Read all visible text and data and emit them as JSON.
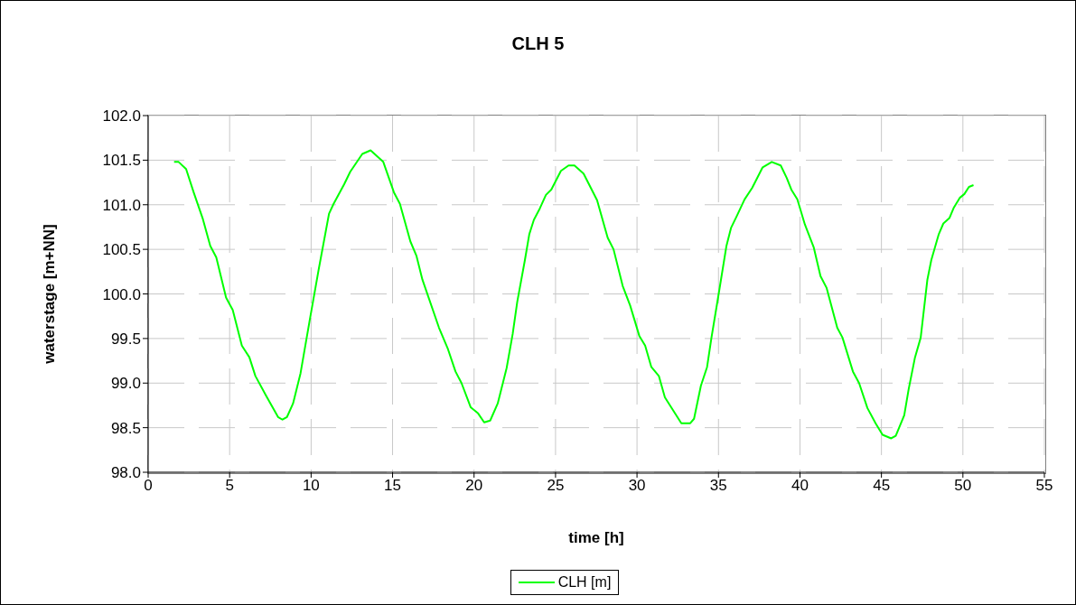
{
  "chart_data": {
    "type": "line",
    "title": "CLH 5",
    "xlabel": "time [h]",
    "ylabel": "waterstage [m+NN]",
    "xlim": [
      0,
      55
    ],
    "xticks": [
      0,
      5,
      10,
      15,
      20,
      25,
      30,
      35,
      40,
      45,
      50,
      55
    ],
    "ylim": [
      98.0,
      102.0
    ],
    "yticks": [
      {
        "value": 98.0,
        "label": "98.0"
      },
      {
        "value": 98.5,
        "label": "98.5"
      },
      {
        "value": 99.0,
        "label": "99.0"
      },
      {
        "value": 99.5,
        "label": "99.5"
      },
      {
        "value": 100.0,
        "label": "100.0"
      },
      {
        "value": 100.5,
        "label": "100.5"
      },
      {
        "value": 101.0,
        "label": "101.0"
      },
      {
        "value": 101.5,
        "label": "101.5"
      },
      {
        "value": 102.0,
        "label": "102.0"
      }
    ],
    "grid": true,
    "legend": "bottom",
    "marker": "none",
    "line_style": "solid",
    "series": [
      {
        "name": "CLH [m]",
        "color": "#00ff00",
        "x": [
          1.59,
          1.87,
          2.33,
          2.79,
          3.34,
          3.81,
          4.18,
          4.78,
          5.19,
          5.75,
          6.21,
          6.58,
          7.23,
          7.97,
          8.24,
          8.52,
          8.89,
          9.35,
          9.9,
          10.46,
          11.1,
          11.38,
          12.03,
          12.4,
          13.14,
          13.65,
          14.43,
          15.08,
          15.45,
          16.09,
          16.46,
          16.83,
          17.85,
          18.4,
          18.86,
          19.23,
          19.79,
          20.25,
          20.62,
          20.99,
          21.45,
          22.0,
          22.37,
          22.65,
          23.12,
          23.39,
          23.67,
          24.04,
          24.41,
          24.74,
          25.33,
          25.8,
          26.16,
          26.72,
          27.55,
          28.2,
          28.56,
          29.12,
          29.58,
          30.14,
          30.5,
          30.88,
          31.34,
          31.71,
          32.72,
          33.27,
          33.5,
          33.92,
          34.3,
          34.57,
          35.03,
          35.49,
          35.77,
          36.14,
          36.6,
          37.07,
          37.71,
          38.27,
          38.82,
          39.19,
          39.47,
          39.84,
          40.3,
          40.85,
          41.26,
          41.63,
          42.29,
          42.61,
          43.25,
          43.63,
          44.14,
          44.64,
          45.07,
          45.6,
          45.88,
          46.4,
          46.67,
          47.05,
          47.41,
          47.82,
          48.06,
          48.52,
          48.8,
          49.17,
          49.45,
          49.82,
          50.09,
          50.37,
          50.65
        ],
        "values": [
          101.48,
          101.48,
          101.4,
          101.14,
          100.85,
          100.54,
          100.41,
          99.96,
          99.82,
          99.42,
          99.29,
          99.08,
          98.86,
          98.62,
          98.59,
          98.62,
          98.77,
          99.11,
          99.69,
          100.27,
          100.9,
          101.01,
          101.23,
          101.37,
          101.57,
          101.61,
          101.48,
          101.14,
          101.01,
          100.59,
          100.43,
          100.16,
          99.62,
          99.38,
          99.13,
          99.0,
          98.73,
          98.66,
          98.56,
          98.58,
          98.77,
          99.17,
          99.55,
          99.91,
          100.38,
          100.67,
          100.83,
          100.96,
          101.11,
          101.17,
          101.38,
          101.44,
          101.44,
          101.35,
          101.05,
          100.63,
          100.5,
          100.09,
          99.87,
          99.53,
          99.42,
          99.18,
          99.08,
          98.84,
          98.55,
          98.55,
          98.6,
          98.97,
          99.18,
          99.51,
          100.02,
          100.54,
          100.74,
          100.88,
          101.06,
          101.19,
          101.42,
          101.48,
          101.44,
          101.3,
          101.17,
          101.06,
          100.78,
          100.52,
          100.2,
          100.07,
          99.62,
          99.51,
          99.13,
          99.0,
          98.72,
          98.55,
          98.42,
          98.38,
          98.41,
          98.64,
          98.93,
          99.28,
          99.51,
          100.16,
          100.38,
          100.67,
          100.79,
          100.85,
          100.97,
          101.08,
          101.12,
          101.2,
          101.22
        ]
      }
    ]
  }
}
